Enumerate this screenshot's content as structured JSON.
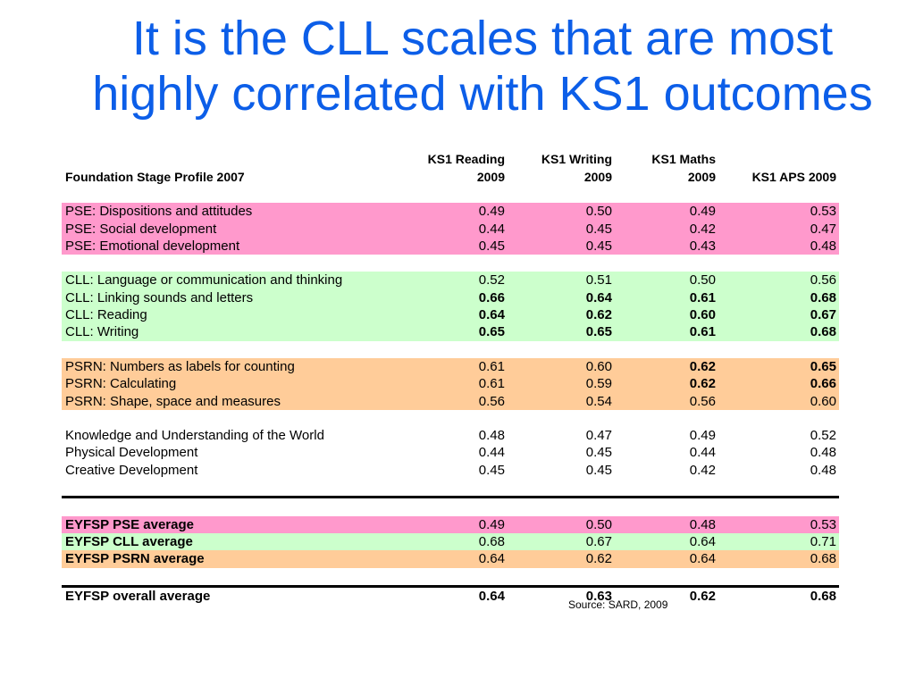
{
  "title": "It is the CLL scales that are most highly correlated with KS1 outcomes",
  "table": {
    "headers": {
      "label": "Foundation Stage Profile 2007",
      "cols": [
        [
          "KS1 Reading",
          "2009"
        ],
        [
          "KS1 Writing",
          "2009"
        ],
        [
          "KS1 Maths",
          "2009"
        ],
        [
          "",
          "KS1 APS 2009"
        ]
      ]
    },
    "groups": [
      {
        "color": "#ff99cc",
        "rows": [
          {
            "label": "PSE: Dispositions and attitudes",
            "values": [
              "0.49",
              "0.50",
              "0.49",
              "0.53"
            ],
            "bold": [
              false,
              false,
              false,
              false
            ]
          },
          {
            "label": "PSE: Social development",
            "values": [
              "0.44",
              "0.45",
              "0.42",
              "0.47"
            ],
            "bold": [
              false,
              false,
              false,
              false
            ]
          },
          {
            "label": "PSE: Emotional development",
            "values": [
              "0.45",
              "0.45",
              "0.43",
              "0.48"
            ],
            "bold": [
              false,
              false,
              false,
              false
            ]
          }
        ]
      },
      {
        "color": "#ccffcc",
        "rows": [
          {
            "label": "CLL: Language or communication and thinking",
            "values": [
              "0.52",
              "0.51",
              "0.50",
              "0.56"
            ],
            "bold": [
              false,
              false,
              false,
              false
            ]
          },
          {
            "label": "CLL: Linking sounds and letters",
            "values": [
              "0.66",
              "0.64",
              "0.61",
              "0.68"
            ],
            "bold": [
              true,
              true,
              true,
              true
            ]
          },
          {
            "label": "CLL: Reading",
            "values": [
              "0.64",
              "0.62",
              "0.60",
              "0.67"
            ],
            "bold": [
              true,
              true,
              true,
              true
            ]
          },
          {
            "label": "CLL: Writing",
            "values": [
              "0.65",
              "0.65",
              "0.61",
              "0.68"
            ],
            "bold": [
              true,
              true,
              true,
              true
            ]
          }
        ]
      },
      {
        "color": "#ffcc99",
        "rows": [
          {
            "label": "PSRN: Numbers as labels for counting",
            "values": [
              "0.61",
              "0.60",
              "0.62",
              "0.65"
            ],
            "bold": [
              false,
              false,
              true,
              true
            ]
          },
          {
            "label": "PSRN: Calculating",
            "values": [
              "0.61",
              "0.59",
              "0.62",
              "0.66"
            ],
            "bold": [
              false,
              false,
              true,
              true
            ]
          },
          {
            "label": "PSRN: Shape, space and measures",
            "values": [
              "0.56",
              "0.54",
              "0.56",
              "0.60"
            ],
            "bold": [
              false,
              false,
              false,
              false
            ]
          }
        ]
      },
      {
        "color": "#ffffff",
        "rows": [
          {
            "label": "Knowledge and Understanding of the World",
            "values": [
              "0.48",
              "0.47",
              "0.49",
              "0.52"
            ],
            "bold": [
              false,
              false,
              false,
              false
            ]
          },
          {
            "label": "Physical Development",
            "values": [
              "0.44",
              "0.45",
              "0.44",
              "0.48"
            ],
            "bold": [
              false,
              false,
              false,
              false
            ]
          },
          {
            "label": "Creative Development",
            "values": [
              "0.45",
              "0.45",
              "0.42",
              "0.48"
            ],
            "bold": [
              false,
              false,
              false,
              false
            ]
          }
        ]
      }
    ],
    "averages": [
      {
        "label": "EYFSP PSE average",
        "color": "#ff99cc",
        "values": [
          "0.49",
          "0.50",
          "0.48",
          "0.53"
        ]
      },
      {
        "label": "EYFSP CLL average",
        "color": "#ccffcc",
        "values": [
          "0.68",
          "0.67",
          "0.64",
          "0.71"
        ]
      },
      {
        "label": "EYFSP PSRN average",
        "color": "#ffcc99",
        "values": [
          "0.64",
          "0.62",
          "0.64",
          "0.68"
        ]
      }
    ],
    "overall": {
      "label": "EYFSP overall average",
      "values": [
        "0.64",
        "0.63",
        "0.62",
        "0.68"
      ]
    }
  },
  "source": "Source: SARD, 2009"
}
